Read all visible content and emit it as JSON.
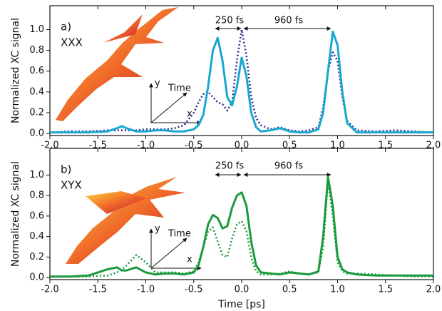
{
  "chart_data": [
    {
      "type": "line",
      "label": "a)",
      "sample": "XXX",
      "ylabel": "Normalized XC signal",
      "x": [
        -2,
        -1.8,
        -1.6,
        -1.4,
        -1.3,
        -1.25,
        -1.2,
        -1.1,
        -1,
        -0.9,
        -0.8,
        -0.7,
        -0.6,
        -0.5,
        -0.45,
        -0.4,
        -0.35,
        -0.3,
        -0.25,
        -0.2,
        -0.15,
        -0.1,
        -0.05,
        0,
        0.05,
        0.1,
        0.15,
        0.2,
        0.3,
        0.4,
        0.5,
        0.6,
        0.7,
        0.8,
        0.85,
        0.9,
        0.95,
        1.0,
        1.05,
        1.1,
        1.2,
        1.4,
        1.6,
        1.8,
        2.0
      ],
      "series": [
        {
          "color": "#1aa7cf",
          "style": "solid",
          "values": [
            0.01,
            0.01,
            0.01,
            0.02,
            0.05,
            0.07,
            0.05,
            0.02,
            0.02,
            0.03,
            0.03,
            0.02,
            0.02,
            0.04,
            0.08,
            0.18,
            0.45,
            0.8,
            0.92,
            0.7,
            0.35,
            0.27,
            0.45,
            0.73,
            0.55,
            0.2,
            0.06,
            0.02,
            0.03,
            0.05,
            0.02,
            0.01,
            0.01,
            0.04,
            0.2,
            0.6,
            0.98,
            0.85,
            0.4,
            0.1,
            0.01,
            0.01,
            0.01,
            0.01,
            0.01
          ]
        },
        {
          "color": "#2b2f8f",
          "style": "dotted",
          "values": [
            0.01,
            0.02,
            0.02,
            0.03,
            0.03,
            0.03,
            0.03,
            0.03,
            0.04,
            0.04,
            0.04,
            0.05,
            0.08,
            0.2,
            0.3,
            0.38,
            0.4,
            0.35,
            0.3,
            0.28,
            0.22,
            0.3,
            0.7,
            1.0,
            0.75,
            0.35,
            0.15,
            0.08,
            0.04,
            0.06,
            0.03,
            0.02,
            0.03,
            0.06,
            0.25,
            0.6,
            0.78,
            0.7,
            0.35,
            0.12,
            0.03,
            0.02,
            0.03,
            0.02,
            0.01
          ]
        }
      ],
      "xlim": [
        -2,
        2
      ],
      "ylim": [
        -0.02,
        1.23
      ],
      "xticks": [
        {
          "value": -2,
          "label": "-2.0"
        },
        {
          "value": -1.5,
          "label": "-1.5"
        },
        {
          "value": -1,
          "label": "-1.0"
        },
        {
          "value": -0.5,
          "label": "-0.5"
        },
        {
          "value": 0,
          "label": "0.0"
        },
        {
          "value": 0.5,
          "label": "0.5"
        },
        {
          "value": 1,
          "label": "1.0"
        },
        {
          "value": 1.5,
          "label": "1.5"
        },
        {
          "value": 2,
          "label": "2.0"
        }
      ],
      "yticks": [
        {
          "value": 0,
          "label": "0.0"
        },
        {
          "value": 0.2,
          "label": "0.2"
        },
        {
          "value": 0.4,
          "label": "0.4"
        },
        {
          "value": 0.6,
          "label": "0.6"
        },
        {
          "value": 0.8,
          "label": "0.8"
        },
        {
          "value": 1,
          "label": "1.0"
        }
      ],
      "annotations": [
        "250 fs",
        "960 fs"
      ],
      "inset_labels": {
        "y": "y",
        "time": "Time",
        "x": "x"
      }
    },
    {
      "type": "line",
      "label": "b)",
      "sample": "XYX",
      "ylabel": "Normalized XC signal",
      "xlabel": "Time [ps]",
      "x": [
        -2,
        -1.8,
        -1.6,
        -1.4,
        -1.3,
        -1.25,
        -1.2,
        -1.1,
        -1,
        -0.9,
        -0.8,
        -0.7,
        -0.6,
        -0.5,
        -0.45,
        -0.4,
        -0.35,
        -0.3,
        -0.25,
        -0.2,
        -0.15,
        -0.1,
        -0.05,
        0,
        0.05,
        0.1,
        0.15,
        0.2,
        0.3,
        0.4,
        0.5,
        0.6,
        0.7,
        0.8,
        0.85,
        0.9,
        0.95,
        1.0,
        1.05,
        1.1,
        1.2,
        1.4,
        1.6,
        1.8,
        2.0
      ],
      "series": [
        {
          "color": "#1a9a3c",
          "style": "solid",
          "values": [
            0.01,
            0.01,
            0.02,
            0.08,
            0.1,
            0.07,
            0.07,
            0.1,
            0.05,
            0.03,
            0.04,
            0.04,
            0.03,
            0.05,
            0.12,
            0.3,
            0.52,
            0.61,
            0.58,
            0.48,
            0.5,
            0.68,
            0.8,
            0.83,
            0.7,
            0.35,
            0.12,
            0.05,
            0.04,
            0.03,
            0.05,
            0.04,
            0.03,
            0.06,
            0.4,
            0.98,
            0.7,
            0.2,
            0.08,
            0.05,
            0.03,
            0.02,
            0.02,
            0.02,
            0.02
          ]
        },
        {
          "color": "#1a9a3c",
          "style": "dotted",
          "values": [
            0.01,
            0.01,
            0.01,
            0.02,
            0.05,
            0.08,
            0.12,
            0.22,
            0.15,
            0.05,
            0.05,
            0.05,
            0.04,
            0.06,
            0.15,
            0.3,
            0.45,
            0.49,
            0.35,
            0.22,
            0.2,
            0.38,
            0.52,
            0.55,
            0.45,
            0.2,
            0.06,
            0.03,
            0.03,
            0.04,
            0.06,
            0.04,
            0.03,
            0.05,
            0.3,
            0.95,
            0.6,
            0.15,
            0.06,
            0.04,
            0.04,
            0.03,
            0.02,
            0.01,
            0.01
          ]
        }
      ],
      "xlim": [
        -2,
        2
      ],
      "ylim": [
        -0.02,
        1.26
      ],
      "xticks": [
        {
          "value": -2,
          "label": "-2.0"
        },
        {
          "value": -1.5,
          "label": "-1.5"
        },
        {
          "value": -1,
          "label": "-1.0"
        },
        {
          "value": -0.5,
          "label": "-0.5"
        },
        {
          "value": 0,
          "label": "0.0"
        },
        {
          "value": 0.5,
          "label": "0.5"
        },
        {
          "value": 1,
          "label": "1.0"
        },
        {
          "value": 1.5,
          "label": "1.5"
        },
        {
          "value": 2,
          "label": "2.0"
        }
      ],
      "yticks": [
        {
          "value": 0,
          "label": "0.0"
        },
        {
          "value": 0.2,
          "label": "0.2"
        },
        {
          "value": 0.4,
          "label": "0.4"
        },
        {
          "value": 0.6,
          "label": "0.6"
        },
        {
          "value": 0.8,
          "label": "0.8"
        },
        {
          "value": 1,
          "label": "1.0"
        }
      ],
      "annotations": [
        "250 fs",
        "960 fs"
      ],
      "inset_labels": {
        "y": "y",
        "time": "Time",
        "x": "x"
      }
    }
  ]
}
